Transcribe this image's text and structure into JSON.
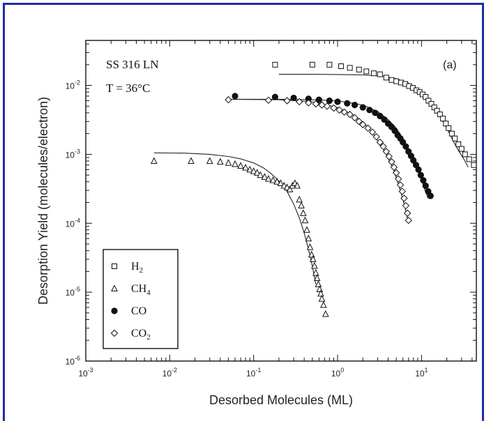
{
  "chart_data": {
    "type": "scatter",
    "xscale": "log",
    "yscale": "log",
    "xlim": [
      0.001,
      45
    ],
    "ylim": [
      1e-06,
      0.045
    ],
    "xlabel": "Desorbed Molecules (ML)",
    "ylabel": "Desorption Yield (molecules/electron)",
    "x_ticks": [
      {
        "value": 0.001,
        "label": "10-3",
        "base": "10",
        "exp": "-3"
      },
      {
        "value": 0.01,
        "label": "10-2",
        "base": "10",
        "exp": "-2"
      },
      {
        "value": 0.1,
        "label": "10-1",
        "base": "10",
        "exp": "-1"
      },
      {
        "value": 1,
        "label": "100",
        "base": "10",
        "exp": "0"
      },
      {
        "value": 10,
        "label": "101",
        "base": "10",
        "exp": "1"
      }
    ],
    "y_ticks": [
      {
        "value": 1e-06,
        "label": "10-6",
        "base": "10",
        "exp": "-6"
      },
      {
        "value": 1e-05,
        "label": "10-5",
        "base": "10",
        "exp": "-5"
      },
      {
        "value": 0.0001,
        "label": "10-4",
        "base": "10",
        "exp": "-4"
      },
      {
        "value": 0.001,
        "label": "10-3",
        "base": "10",
        "exp": "-3"
      },
      {
        "value": 0.01,
        "label": "10-2",
        "base": "10",
        "exp": "-2"
      }
    ],
    "annotations": {
      "material": "SS 316 LN",
      "temperature": "T = 36°C",
      "panel": "(a)"
    },
    "series": [
      {
        "name": "H2",
        "name_base": "H",
        "name_sub": "2",
        "marker": "square-open",
        "points": [
          [
            0.18,
            0.02
          ],
          [
            0.5,
            0.02
          ],
          [
            0.8,
            0.02
          ],
          [
            1.1,
            0.019
          ],
          [
            1.4,
            0.018
          ],
          [
            1.8,
            0.017
          ],
          [
            2.2,
            0.016
          ],
          [
            2.7,
            0.015
          ],
          [
            3.2,
            0.0145
          ],
          [
            3.8,
            0.013
          ],
          [
            4.4,
            0.012
          ],
          [
            5.0,
            0.0115
          ],
          [
            5.7,
            0.011
          ],
          [
            6.4,
            0.0105
          ],
          [
            7.1,
            0.0098
          ],
          [
            7.9,
            0.0092
          ],
          [
            8.7,
            0.0085
          ],
          [
            9.5,
            0.008
          ],
          [
            10.3,
            0.0074
          ],
          [
            11.2,
            0.0068
          ],
          [
            12.1,
            0.006
          ],
          [
            13.1,
            0.0054
          ],
          [
            14.2,
            0.0048
          ],
          [
            15.3,
            0.0043
          ],
          [
            16.6,
            0.0038
          ],
          [
            18.0,
            0.0033
          ],
          [
            19.5,
            0.0028
          ],
          [
            21.0,
            0.0024
          ],
          [
            23.0,
            0.002
          ],
          [
            25.0,
            0.0017
          ],
          [
            27.5,
            0.0014
          ],
          [
            30.0,
            0.0012
          ],
          [
            33.0,
            0.001
          ],
          [
            37.0,
            0.00085
          ],
          [
            42.0,
            0.0007
          ]
        ],
        "fit": [
          [
            0.2,
            0.0145
          ],
          [
            0.5,
            0.0145
          ],
          [
            1,
            0.0144
          ],
          [
            2,
            0.0142
          ],
          [
            3,
            0.0138
          ],
          [
            4,
            0.0132
          ],
          [
            5,
            0.0125
          ],
          [
            6,
            0.0116
          ],
          [
            7,
            0.0108
          ],
          [
            8,
            0.0098
          ],
          [
            9,
            0.0089
          ],
          [
            10,
            0.008
          ],
          [
            12,
            0.0064
          ],
          [
            14,
            0.005
          ],
          [
            16,
            0.0039
          ],
          [
            18,
            0.003
          ],
          [
            20,
            0.0024
          ],
          [
            22,
            0.0019
          ],
          [
            25,
            0.0014
          ],
          [
            28,
            0.0011
          ],
          [
            32,
            0.00085
          ],
          [
            36,
            0.00065
          ]
        ]
      },
      {
        "name": "CH4",
        "name_base": "CH",
        "name_sub": "4",
        "marker": "triangle-open",
        "points": [
          [
            0.0065,
            0.0008
          ],
          [
            0.018,
            0.0008
          ],
          [
            0.03,
            0.0008
          ],
          [
            0.04,
            0.00078
          ],
          [
            0.05,
            0.00075
          ],
          [
            0.06,
            0.00072
          ],
          [
            0.07,
            0.00068
          ],
          [
            0.08,
            0.00064
          ],
          [
            0.09,
            0.0006
          ],
          [
            0.1,
            0.00057
          ],
          [
            0.11,
            0.00054
          ],
          [
            0.12,
            0.0005
          ],
          [
            0.135,
            0.00047
          ],
          [
            0.15,
            0.00044
          ],
          [
            0.17,
            0.00042
          ],
          [
            0.19,
            0.0004
          ],
          [
            0.21,
            0.00038
          ],
          [
            0.23,
            0.00035
          ],
          [
            0.25,
            0.00033
          ],
          [
            0.27,
            0.00031
          ],
          [
            0.29,
            0.00035
          ],
          [
            0.31,
            0.00038
          ],
          [
            0.33,
            0.00035
          ],
          [
            0.35,
            0.00022
          ],
          [
            0.37,
            0.00018
          ],
          [
            0.39,
            0.00014
          ],
          [
            0.41,
            0.00011
          ],
          [
            0.43,
            8e-05
          ],
          [
            0.45,
            6e-05
          ],
          [
            0.47,
            4.5e-05
          ],
          [
            0.49,
            3.5e-05
          ],
          [
            0.51,
            3e-05
          ],
          [
            0.53,
            2.4e-05
          ],
          [
            0.55,
            1.9e-05
          ],
          [
            0.57,
            1.6e-05
          ],
          [
            0.59,
            1.3e-05
          ],
          [
            0.61,
            1.1e-05
          ],
          [
            0.63,
            9.5e-06
          ],
          [
            0.65,
            8e-06
          ],
          [
            0.68,
            6.5e-06
          ],
          [
            0.72,
            4.8e-06
          ]
        ],
        "fit": [
          [
            0.0065,
            0.00105
          ],
          [
            0.015,
            0.00104
          ],
          [
            0.03,
            0.001
          ],
          [
            0.05,
            0.00093
          ],
          [
            0.07,
            0.00086
          ],
          [
            0.1,
            0.00075
          ],
          [
            0.13,
            0.00064
          ],
          [
            0.16,
            0.00053
          ],
          [
            0.2,
            0.00041
          ],
          [
            0.25,
            0.00029
          ],
          [
            0.3,
            0.00019
          ],
          [
            0.35,
            0.00012
          ],
          [
            0.4,
            7.2e-05
          ],
          [
            0.45,
            4.2e-05
          ],
          [
            0.5,
            2.4e-05
          ],
          [
            0.55,
            1.3e-05
          ]
        ]
      },
      {
        "name": "CO",
        "name_base": "CO",
        "name_sub": "",
        "marker": "circle-filled",
        "points": [
          [
            0.06,
            0.007
          ],
          [
            0.18,
            0.0068
          ],
          [
            0.3,
            0.0066
          ],
          [
            0.45,
            0.0064
          ],
          [
            0.6,
            0.0062
          ],
          [
            0.8,
            0.006
          ],
          [
            1.0,
            0.0058
          ],
          [
            1.3,
            0.0055
          ],
          [
            1.6,
            0.0052
          ],
          [
            2.0,
            0.0048
          ],
          [
            2.4,
            0.0044
          ],
          [
            2.8,
            0.004
          ],
          [
            3.2,
            0.0036
          ],
          [
            3.6,
            0.0032
          ],
          [
            4.0,
            0.0028
          ],
          [
            4.4,
            0.0025
          ],
          [
            4.8,
            0.0022
          ],
          [
            5.2,
            0.0019
          ],
          [
            5.6,
            0.0017
          ],
          [
            6.0,
            0.0015
          ],
          [
            6.5,
            0.0013
          ],
          [
            7.0,
            0.0011
          ],
          [
            7.5,
            0.00095
          ],
          [
            8.0,
            0.00082
          ],
          [
            8.6,
            0.0007
          ],
          [
            9.2,
            0.0006
          ],
          [
            9.8,
            0.0005
          ],
          [
            10.5,
            0.00042
          ],
          [
            11.2,
            0.00035
          ],
          [
            12.0,
            0.00029
          ],
          [
            12.8,
            0.00025
          ]
        ],
        "fit": [
          [
            0.06,
            0.0063
          ],
          [
            0.2,
            0.0063
          ],
          [
            0.5,
            0.0062
          ],
          [
            1,
            0.006
          ],
          [
            2,
            0.0052
          ],
          [
            3,
            0.0042
          ],
          [
            4,
            0.0032
          ],
          [
            5,
            0.0024
          ],
          [
            6,
            0.0017
          ],
          [
            7,
            0.0012
          ],
          [
            8,
            0.00085
          ],
          [
            9,
            0.0006
          ],
          [
            10,
            0.00042
          ],
          [
            11,
            0.0003
          ],
          [
            12,
            0.00023
          ]
        ]
      },
      {
        "name": "CO2",
        "name_base": "CO",
        "name_sub": "2",
        "marker": "diamond-open",
        "points": [
          [
            0.05,
            0.0062
          ],
          [
            0.15,
            0.0061
          ],
          [
            0.25,
            0.006
          ],
          [
            0.35,
            0.0058
          ],
          [
            0.45,
            0.0056
          ],
          [
            0.55,
            0.0054
          ],
          [
            0.65,
            0.0052
          ],
          [
            0.75,
            0.005
          ],
          [
            0.9,
            0.0047
          ],
          [
            1.05,
            0.0044
          ],
          [
            1.2,
            0.0041
          ],
          [
            1.4,
            0.0038
          ],
          [
            1.6,
            0.0034
          ],
          [
            1.8,
            0.003
          ],
          [
            2.0,
            0.0027
          ],
          [
            2.3,
            0.0024
          ],
          [
            2.6,
            0.0021
          ],
          [
            2.9,
            0.0018
          ],
          [
            3.2,
            0.0015
          ],
          [
            3.5,
            0.0013
          ],
          [
            3.8,
            0.0011
          ],
          [
            4.1,
            0.00093
          ],
          [
            4.4,
            0.00078
          ],
          [
            4.7,
            0.00065
          ],
          [
            5.0,
            0.00054
          ],
          [
            5.3,
            0.00044
          ],
          [
            5.6,
            0.00036
          ],
          [
            5.9,
            0.00029
          ],
          [
            6.2,
            0.00023
          ],
          [
            6.5,
            0.00018
          ],
          [
            6.8,
            0.00014
          ],
          [
            7.0,
            0.00011
          ]
        ],
        "fit": [
          [
            0.05,
            0.0063
          ],
          [
            0.2,
            0.0062
          ],
          [
            0.5,
            0.0058
          ],
          [
            1,
            0.0048
          ],
          [
            1.5,
            0.0038
          ],
          [
            2,
            0.0029
          ],
          [
            2.5,
            0.0022
          ],
          [
            3,
            0.0016
          ],
          [
            3.5,
            0.0012
          ],
          [
            4,
            0.00088
          ],
          [
            4.5,
            0.00065
          ],
          [
            5,
            0.00046
          ],
          [
            5.5,
            0.00032
          ],
          [
            6,
            0.00022
          ],
          [
            6.5,
            0.00015
          ],
          [
            7,
            0.0001
          ]
        ]
      }
    ],
    "legend": {
      "position": "bottom-left"
    },
    "grid": false
  }
}
